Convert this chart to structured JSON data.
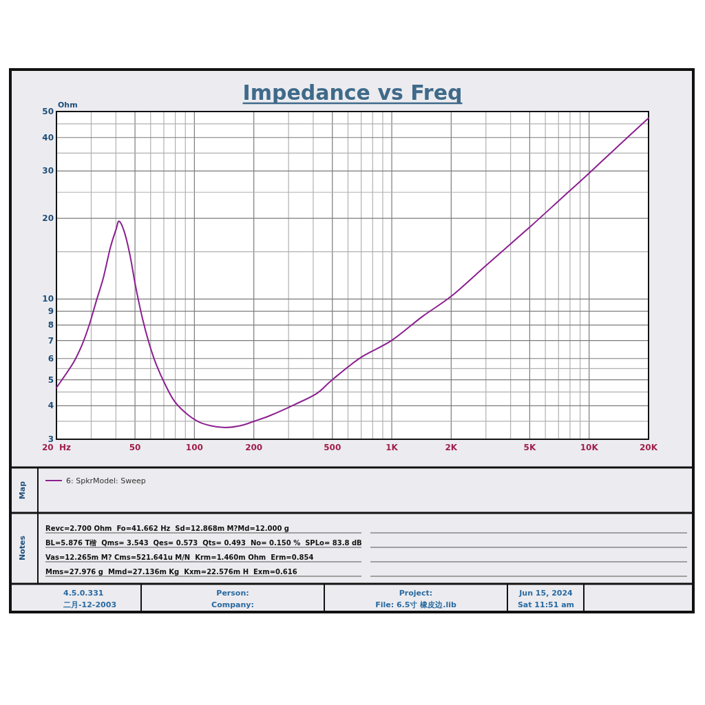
{
  "chart_data": {
    "type": "line",
    "title": "Impedance vs Freq",
    "ylabel": "Ohm",
    "log": "xy",
    "grid": true,
    "legend": "bottom",
    "xlim": [
      20,
      20000
    ],
    "ylim": [
      3,
      50
    ],
    "xticks": [
      {
        "value": 20,
        "label": "20  Hz"
      },
      {
        "value": 30,
        "label": null
      },
      {
        "value": 40,
        "label": null
      },
      50,
      {
        "value": 60,
        "label": null
      },
      {
        "value": 70,
        "label": null
      },
      {
        "value": 80,
        "label": null
      },
      {
        "value": 90,
        "label": null
      },
      100,
      200,
      {
        "value": 300,
        "label": null
      },
      {
        "value": 400,
        "label": null
      },
      500,
      {
        "value": 600,
        "label": null
      },
      {
        "value": 700,
        "label": null
      },
      {
        "value": 800,
        "label": null
      },
      {
        "value": 900,
        "label": null
      },
      {
        "value": 1000,
        "label": "1K"
      },
      {
        "value": 2000,
        "label": "2K"
      },
      {
        "value": 3000,
        "label": null
      },
      {
        "value": 4000,
        "label": null
      },
      {
        "value": 5000,
        "label": "5K"
      },
      {
        "value": 6000,
        "label": null
      },
      {
        "value": 7000,
        "label": null
      },
      {
        "value": 8000,
        "label": null
      },
      {
        "value": 9000,
        "label": null
      },
      {
        "value": 10000,
        "label": "10K"
      },
      {
        "value": 20000,
        "label": "20K"
      }
    ],
    "yticks": [
      3,
      {
        "value": 3.5,
        "label": null
      },
      4,
      {
        "value": 4.5,
        "label": null
      },
      5,
      {
        "value": 5.5,
        "label": null
      },
      6,
      7,
      8,
      9,
      10,
      {
        "value": 15,
        "label": null
      },
      20,
      {
        "value": 25,
        "label": null
      },
      30,
      {
        "value": 35,
        "label": null
      },
      40,
      {
        "value": 45,
        "label": null
      },
      50
    ],
    "x": [
      20,
      24.4,
      27.2,
      29.5,
      31.9,
      34.6,
      37.5,
      40.1,
      41.5,
      44.1,
      47.1,
      50.4,
      54.6,
      59.1,
      64.1,
      71.4,
      79.4,
      93.2,
      109.5,
      139.3,
      168,
      202.7,
      244.5,
      319.5,
      417.7,
      501,
      694,
      997,
      1431,
      2011,
      3028,
      5010,
      7135,
      10024,
      13932,
      20000
    ],
    "series": [
      {
        "name": "6: SpkrModel: Sweep",
        "color": "#8b1f8f",
        "values": [
          4.67,
          5.8,
          6.86,
          8.12,
          9.88,
          12.03,
          15.54,
          18.19,
          19.5,
          17.84,
          14.65,
          11.12,
          8.44,
          6.79,
          5.69,
          4.77,
          4.15,
          3.69,
          3.44,
          3.32,
          3.36,
          3.51,
          3.69,
          4.03,
          4.45,
          5.01,
          6.04,
          7.0,
          8.61,
          10.27,
          13.41,
          18.56,
          23.5,
          29.5,
          37.0,
          47.3
        ]
      }
    ],
    "annotations": [
      "Map",
      "Notes",
      "Revc=2.700 Ohm  Fo=41.662 Hz  Sd=12.868m M?Md=12.000 g",
      "BL=5.876 T楷  Qms= 3.543  Qes= 0.573  Qts= 0.493  No= 0.150 %  SPLo= 83.8 dB",
      "Vas=12.265m M? Cms=521.641u M/N  Krm=1.460m Ohm  Erm=0.854",
      "Mms=27.976 g  Mmd=27.136m Kg  Kxm=22.576m H  Exm=0.616",
      "4.5.0.331",
      "二月-12-2003",
      "Person:",
      "Company:",
      "Project:",
      "File: 6.5寸 橡皮边.lib",
      "Jun 15, 2024",
      "Sat 11:51 am"
    ]
  }
}
